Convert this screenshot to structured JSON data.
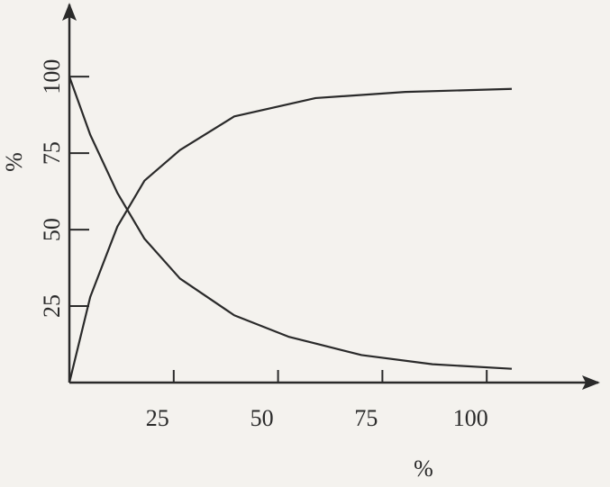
{
  "chart_data": {
    "type": "line",
    "x_label": "%",
    "y_label": "%",
    "xlim": [
      0,
      125
    ],
    "ylim": [
      0,
      123
    ],
    "xticks": [
      25,
      50,
      75,
      100
    ],
    "yticks": [
      25,
      50,
      75,
      100
    ],
    "series": [
      {
        "color": "#2a2a2a",
        "x": [
          0,
          5,
          11.5,
          18,
          26.5,
          39.5,
          52.5,
          70,
          87,
          106
        ],
        "values": [
          100,
          81,
          62,
          47,
          34,
          22,
          15,
          9,
          6,
          4.5
        ]
      },
      {
        "color": "#2a2a2a",
        "x": [
          0,
          5,
          11.5,
          18,
          26.5,
          39.5,
          59,
          80.5,
          106
        ],
        "values": [
          0,
          28,
          51,
          66,
          76,
          87,
          93,
          95,
          96
        ]
      }
    ]
  }
}
